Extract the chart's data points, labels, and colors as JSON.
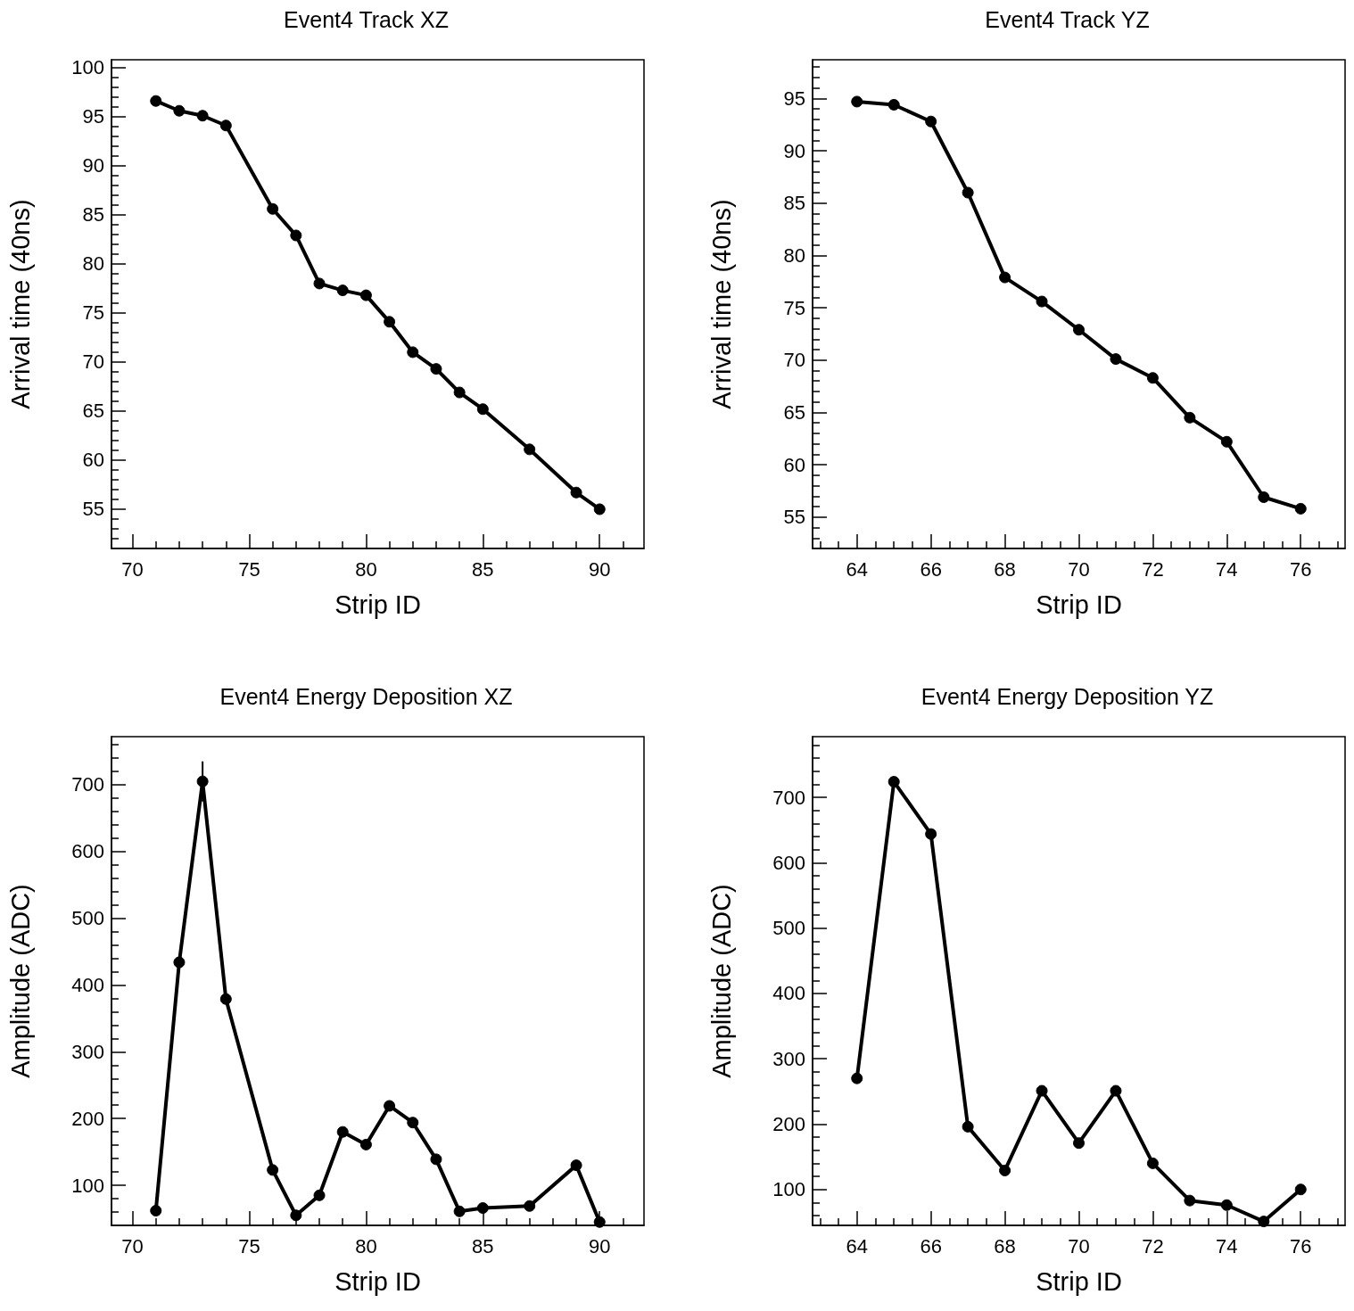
{
  "chart_data": [
    {
      "type": "line",
      "title": "Event4 Track XZ",
      "xlabel": "Strip ID",
      "ylabel": "Arrival time (40ns)",
      "color": "#000000",
      "marker": "circle",
      "line_style": "solid",
      "grid": false,
      "x": [
        71,
        72,
        73,
        74,
        76,
        77,
        78,
        79,
        80,
        81,
        82,
        83,
        84,
        85,
        87,
        89,
        90
      ],
      "values": [
        96.6,
        95.6,
        95.1,
        94.1,
        85.6,
        82.9,
        78.0,
        77.3,
        76.8,
        74.1,
        71.0,
        69.3,
        66.9,
        65.2,
        61.1,
        56.7,
        55.0
      ],
      "xlim": [
        69.1,
        91.9
      ],
      "ylim": [
        51,
        100.8
      ],
      "xticks": [
        70,
        {
          "value": 71,
          "label": null
        },
        {
          "value": 72,
          "label": null
        },
        {
          "value": 73,
          "label": null
        },
        {
          "value": 74,
          "label": null
        },
        75,
        {
          "value": 76,
          "label": null
        },
        {
          "value": 77,
          "label": null
        },
        {
          "value": 78,
          "label": null
        },
        {
          "value": 79,
          "label": null
        },
        80,
        {
          "value": 81,
          "label": null
        },
        {
          "value": 82,
          "label": null
        },
        {
          "value": 83,
          "label": null
        },
        {
          "value": 84,
          "label": null
        },
        85,
        {
          "value": 86,
          "label": null
        },
        {
          "value": 87,
          "label": null
        },
        {
          "value": 88,
          "label": null
        },
        {
          "value": 89,
          "label": null
        },
        90,
        {
          "value": 91,
          "label": null
        }
      ],
      "yticks": [
        {
          "value": 52,
          "label": null
        },
        {
          "value": 53,
          "label": null
        },
        {
          "value": 54,
          "label": null
        },
        55,
        {
          "value": 56,
          "label": null
        },
        {
          "value": 57,
          "label": null
        },
        {
          "value": 58,
          "label": null
        },
        {
          "value": 59,
          "label": null
        },
        60,
        {
          "value": 61,
          "label": null
        },
        {
          "value": 62,
          "label": null
        },
        {
          "value": 63,
          "label": null
        },
        {
          "value": 64,
          "label": null
        },
        65,
        {
          "value": 66,
          "label": null
        },
        {
          "value": 67,
          "label": null
        },
        {
          "value": 68,
          "label": null
        },
        {
          "value": 69,
          "label": null
        },
        70,
        {
          "value": 71,
          "label": null
        },
        {
          "value": 72,
          "label": null
        },
        {
          "value": 73,
          "label": null
        },
        {
          "value": 74,
          "label": null
        },
        75,
        {
          "value": 76,
          "label": null
        },
        {
          "value": 77,
          "label": null
        },
        {
          "value": 78,
          "label": null
        },
        {
          "value": 79,
          "label": null
        },
        80,
        {
          "value": 81,
          "label": null
        },
        {
          "value": 82,
          "label": null
        },
        {
          "value": 83,
          "label": null
        },
        {
          "value": 84,
          "label": null
        },
        85,
        {
          "value": 86,
          "label": null
        },
        {
          "value": 87,
          "label": null
        },
        {
          "value": 88,
          "label": null
        },
        {
          "value": 89,
          "label": null
        },
        90,
        {
          "value": 91,
          "label": null
        },
        {
          "value": 92,
          "label": null
        },
        {
          "value": 93,
          "label": null
        },
        {
          "value": 94,
          "label": null
        },
        95,
        {
          "value": 96,
          "label": null
        },
        {
          "value": 97,
          "label": null
        },
        {
          "value": 98,
          "label": null
        },
        {
          "value": 99,
          "label": null
        },
        100
      ]
    },
    {
      "type": "line",
      "title": "Event4 Track YZ",
      "xlabel": "Strip ID",
      "ylabel": "Arrival time (40ns)",
      "color": "#000000",
      "marker": "circle",
      "line_style": "solid",
      "grid": false,
      "x": [
        64,
        65,
        66,
        67,
        68,
        69,
        70,
        71,
        72,
        73,
        74,
        75,
        76
      ],
      "values": [
        94.7,
        94.4,
        92.8,
        86.0,
        77.9,
        75.6,
        72.9,
        70.1,
        68.3,
        64.5,
        62.2,
        56.9,
        55.8
      ],
      "xlim": [
        62.8,
        77.2
      ],
      "ylim": [
        52,
        98.7
      ],
      "xticks": [
        {
          "value": 63,
          "label": null
        },
        {
          "value": 63.5,
          "label": null
        },
        64,
        {
          "value": 64.5,
          "label": null
        },
        {
          "value": 65,
          "label": null
        },
        {
          "value": 65.5,
          "label": null
        },
        66,
        {
          "value": 66.5,
          "label": null
        },
        {
          "value": 67,
          "label": null
        },
        {
          "value": 67.5,
          "label": null
        },
        68,
        {
          "value": 68.5,
          "label": null
        },
        {
          "value": 69,
          "label": null
        },
        {
          "value": 69.5,
          "label": null
        },
        70,
        {
          "value": 70.5,
          "label": null
        },
        {
          "value": 71,
          "label": null
        },
        {
          "value": 71.5,
          "label": null
        },
        72,
        {
          "value": 72.5,
          "label": null
        },
        {
          "value": 73,
          "label": null
        },
        {
          "value": 73.5,
          "label": null
        },
        74,
        {
          "value": 74.5,
          "label": null
        },
        {
          "value": 75,
          "label": null
        },
        {
          "value": 75.5,
          "label": null
        },
        76,
        {
          "value": 76.5,
          "label": null
        },
        {
          "value": 77,
          "label": null
        }
      ],
      "yticks": [
        {
          "value": 53,
          "label": null
        },
        {
          "value": 54,
          "label": null
        },
        55,
        {
          "value": 56,
          "label": null
        },
        {
          "value": 57,
          "label": null
        },
        {
          "value": 58,
          "label": null
        },
        {
          "value": 59,
          "label": null
        },
        60,
        {
          "value": 61,
          "label": null
        },
        {
          "value": 62,
          "label": null
        },
        {
          "value": 63,
          "label": null
        },
        {
          "value": 64,
          "label": null
        },
        65,
        {
          "value": 66,
          "label": null
        },
        {
          "value": 67,
          "label": null
        },
        {
          "value": 68,
          "label": null
        },
        {
          "value": 69,
          "label": null
        },
        70,
        {
          "value": 71,
          "label": null
        },
        {
          "value": 72,
          "label": null
        },
        {
          "value": 73,
          "label": null
        },
        {
          "value": 74,
          "label": null
        },
        75,
        {
          "value": 76,
          "label": null
        },
        {
          "value": 77,
          "label": null
        },
        {
          "value": 78,
          "label": null
        },
        {
          "value": 79,
          "label": null
        },
        80,
        {
          "value": 81,
          "label": null
        },
        {
          "value": 82,
          "label": null
        },
        {
          "value": 83,
          "label": null
        },
        {
          "value": 84,
          "label": null
        },
        85,
        {
          "value": 86,
          "label": null
        },
        {
          "value": 87,
          "label": null
        },
        {
          "value": 88,
          "label": null
        },
        {
          "value": 89,
          "label": null
        },
        90,
        {
          "value": 91,
          "label": null
        },
        {
          "value": 92,
          "label": null
        },
        {
          "value": 93,
          "label": null
        },
        {
          "value": 94,
          "label": null
        },
        95,
        {
          "value": 96,
          "label": null
        },
        {
          "value": 97,
          "label": null
        },
        {
          "value": 98,
          "label": null
        }
      ]
    },
    {
      "type": "line",
      "title": "Event4 Energy Deposition XZ",
      "xlabel": "Strip ID",
      "ylabel": "Amplitude (ADC)",
      "color": "#000000",
      "marker": "circle",
      "line_style": "solid",
      "grid": false,
      "x": [
        71,
        72,
        73,
        74,
        76,
        77,
        78,
        79,
        80,
        81,
        82,
        83,
        84,
        85,
        87,
        89,
        90
      ],
      "values": [
        62,
        434,
        705,
        379,
        123,
        55,
        85,
        180,
        161,
        219,
        194,
        139,
        61,
        66,
        69,
        130,
        45
      ],
      "errors": [
        null,
        null,
        30,
        null,
        null,
        null,
        null,
        null,
        null,
        null,
        null,
        null,
        null,
        null,
        null,
        null,
        null
      ],
      "xlim": [
        69.1,
        91.9
      ],
      "ylim": [
        40,
        772
      ],
      "xticks": [
        70,
        {
          "value": 71,
          "label": null
        },
        {
          "value": 72,
          "label": null
        },
        {
          "value": 73,
          "label": null
        },
        {
          "value": 74,
          "label": null
        },
        75,
        {
          "value": 76,
          "label": null
        },
        {
          "value": 77,
          "label": null
        },
        {
          "value": 78,
          "label": null
        },
        {
          "value": 79,
          "label": null
        },
        80,
        {
          "value": 81,
          "label": null
        },
        {
          "value": 82,
          "label": null
        },
        {
          "value": 83,
          "label": null
        },
        {
          "value": 84,
          "label": null
        },
        85,
        {
          "value": 86,
          "label": null
        },
        {
          "value": 87,
          "label": null
        },
        {
          "value": 88,
          "label": null
        },
        {
          "value": 89,
          "label": null
        },
        90,
        {
          "value": 91,
          "label": null
        }
      ],
      "yticks": [
        {
          "value": 60,
          "label": null
        },
        {
          "value": 80,
          "label": null
        },
        100,
        {
          "value": 120,
          "label": null
        },
        {
          "value": 140,
          "label": null
        },
        {
          "value": 160,
          "label": null
        },
        {
          "value": 180,
          "label": null
        },
        200,
        {
          "value": 220,
          "label": null
        },
        {
          "value": 240,
          "label": null
        },
        {
          "value": 260,
          "label": null
        },
        {
          "value": 280,
          "label": null
        },
        300,
        {
          "value": 320,
          "label": null
        },
        {
          "value": 340,
          "label": null
        },
        {
          "value": 360,
          "label": null
        },
        {
          "value": 380,
          "label": null
        },
        400,
        {
          "value": 420,
          "label": null
        },
        {
          "value": 440,
          "label": null
        },
        {
          "value": 460,
          "label": null
        },
        {
          "value": 480,
          "label": null
        },
        500,
        {
          "value": 520,
          "label": null
        },
        {
          "value": 540,
          "label": null
        },
        {
          "value": 560,
          "label": null
        },
        {
          "value": 580,
          "label": null
        },
        600,
        {
          "value": 620,
          "label": null
        },
        {
          "value": 640,
          "label": null
        },
        {
          "value": 660,
          "label": null
        },
        {
          "value": 680,
          "label": null
        },
        700,
        {
          "value": 720,
          "label": null
        },
        {
          "value": 740,
          "label": null
        },
        {
          "value": 760,
          "label": null
        }
      ]
    },
    {
      "type": "line",
      "title": "Event4 Energy Deposition YZ",
      "xlabel": "Strip ID",
      "ylabel": "Amplitude (ADC)",
      "color": "#000000",
      "marker": "circle",
      "line_style": "solid",
      "grid": false,
      "x": [
        64,
        65,
        66,
        67,
        68,
        69,
        70,
        71,
        72,
        73,
        74,
        75,
        76
      ],
      "values": [
        270,
        724,
        644,
        196,
        129,
        251,
        171,
        251,
        140,
        83,
        76,
        51,
        100
      ],
      "xlim": [
        62.8,
        77.2
      ],
      "ylim": [
        45,
        793
      ],
      "xticks": [
        {
          "value": 63,
          "label": null
        },
        {
          "value": 63.5,
          "label": null
        },
        64,
        {
          "value": 64.5,
          "label": null
        },
        {
          "value": 65,
          "label": null
        },
        {
          "value": 65.5,
          "label": null
        },
        66,
        {
          "value": 66.5,
          "label": null
        },
        {
          "value": 67,
          "label": null
        },
        {
          "value": 67.5,
          "label": null
        },
        68,
        {
          "value": 68.5,
          "label": null
        },
        {
          "value": 69,
          "label": null
        },
        {
          "value": 69.5,
          "label": null
        },
        70,
        {
          "value": 70.5,
          "label": null
        },
        {
          "value": 71,
          "label": null
        },
        {
          "value": 71.5,
          "label": null
        },
        72,
        {
          "value": 72.5,
          "label": null
        },
        {
          "value": 73,
          "label": null
        },
        {
          "value": 73.5,
          "label": null
        },
        74,
        {
          "value": 74.5,
          "label": null
        },
        {
          "value": 75,
          "label": null
        },
        {
          "value": 75.5,
          "label": null
        },
        76,
        {
          "value": 76.5,
          "label": null
        },
        {
          "value": 77,
          "label": null
        }
      ],
      "yticks": [
        {
          "value": 60,
          "label": null
        },
        {
          "value": 80,
          "label": null
        },
        100,
        {
          "value": 120,
          "label": null
        },
        {
          "value": 140,
          "label": null
        },
        {
          "value": 160,
          "label": null
        },
        {
          "value": 180,
          "label": null
        },
        200,
        {
          "value": 220,
          "label": null
        },
        {
          "value": 240,
          "label": null
        },
        {
          "value": 260,
          "label": null
        },
        {
          "value": 280,
          "label": null
        },
        300,
        {
          "value": 320,
          "label": null
        },
        {
          "value": 340,
          "label": null
        },
        {
          "value": 360,
          "label": null
        },
        {
          "value": 380,
          "label": null
        },
        400,
        {
          "value": 420,
          "label": null
        },
        {
          "value": 440,
          "label": null
        },
        {
          "value": 460,
          "label": null
        },
        {
          "value": 480,
          "label": null
        },
        500,
        {
          "value": 520,
          "label": null
        },
        {
          "value": 540,
          "label": null
        },
        {
          "value": 560,
          "label": null
        },
        {
          "value": 580,
          "label": null
        },
        600,
        {
          "value": 620,
          "label": null
        },
        {
          "value": 640,
          "label": null
        },
        {
          "value": 660,
          "label": null
        },
        {
          "value": 680,
          "label": null
        },
        700,
        {
          "value": 720,
          "label": null
        },
        {
          "value": 740,
          "label": null
        },
        {
          "value": 760,
          "label": null
        },
        {
          "value": 780,
          "label": null
        }
      ]
    }
  ]
}
